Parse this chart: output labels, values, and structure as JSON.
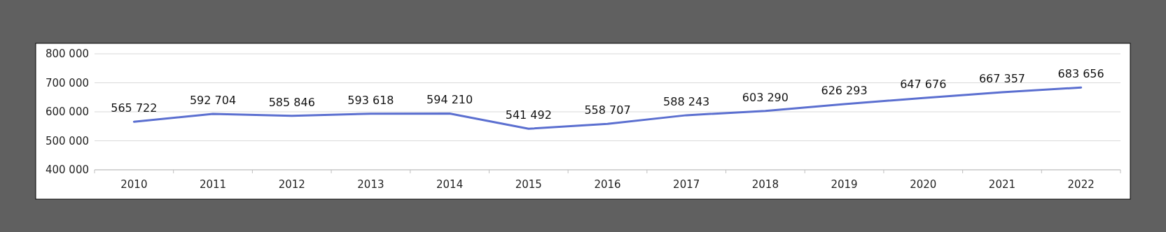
{
  "chart_data": {
    "type": "line",
    "categories": [
      "2010",
      "2011",
      "2012",
      "2013",
      "2014",
      "2015",
      "2016",
      "2017",
      "2018",
      "2019",
      "2020",
      "2021",
      "2022"
    ],
    "series": [
      {
        "color": "#5b6fd0",
        "values": [
          565722,
          592704,
          585846,
          593618,
          594210,
          541492,
          558707,
          588243,
          603290,
          626293,
          647676,
          667357,
          683656
        ],
        "value_labels": [
          "565 722",
          "592 704",
          "585 846",
          "593 618",
          "594 210",
          "541 492",
          "558 707",
          "588 243",
          "603 290",
          "626 293",
          "647 676",
          "667 357",
          "683 656"
        ]
      }
    ],
    "ylim": [
      400000,
      800000
    ],
    "yticks": [
      {
        "value": 400000,
        "label": "400 000"
      },
      {
        "value": 500000,
        "label": "500 000"
      },
      {
        "value": 600000,
        "label": "600 000"
      },
      {
        "value": 700000,
        "label": "700 000"
      },
      {
        "value": 800000,
        "label": "800 000"
      }
    ],
    "grid": "y",
    "marker": "none",
    "line_style": "solid"
  }
}
